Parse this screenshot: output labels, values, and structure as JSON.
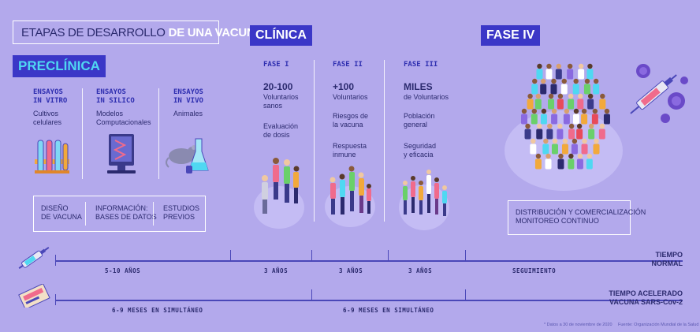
{
  "title": {
    "main": "ETAPAS DE DESARROLLO",
    "bold": "DE UNA VACUNA"
  },
  "phases": {
    "preclinica": "PRECLÍNICA",
    "clinica": "CLÍNICA",
    "fase4": "FASE IV"
  },
  "preclinica": {
    "columns": [
      {
        "head": "ENSAYOS\nIN VITRO",
        "desc": "Cultivos\ncelulares",
        "icon": "test-tubes-icon"
      },
      {
        "head": "ENSAYOS\nIN SILICO",
        "desc": "Modelos\nComputacionales",
        "icon": "computer-icon"
      },
      {
        "head": "ENSAYOS\nIN VIVO",
        "desc": "Animales",
        "icon": "mouse-flask-icon"
      }
    ],
    "footer_items": [
      "DISEÑO\nDE VACUNA",
      "INFORMACIÓN:\nBASES DE DATOS",
      "ESTUDIOS\nPREVIOS"
    ]
  },
  "clinica": {
    "columns": [
      {
        "head": "FASE I",
        "big": "20-100",
        "lines": [
          "Voluntarios\nsanos",
          "Evaluación\nde dosis"
        ]
      },
      {
        "head": "FASE II",
        "big": "+100",
        "lines": [
          "Voluntarios",
          "Riesgos de\nla vacuna",
          "Respuesta\ninmune"
        ]
      },
      {
        "head": "FASE III",
        "big": "MILES",
        "lines": [
          "de Voluntarios",
          "Población\ngeneral",
          "Seguridad\ny eficacia"
        ]
      }
    ]
  },
  "fase4": {
    "box": "DISTRIBUCIÓN Y COMERCIALIZACIÓN\nMONITOREO CONTINUO"
  },
  "timeline_normal": {
    "segments": [
      "5-10 AÑOS",
      "3 AÑOS",
      "3 AÑOS",
      "3 AÑOS",
      "SEGUIMIENTO"
    ],
    "label": "TIEMPO\nNORMAL"
  },
  "timeline_fast": {
    "segments": [
      "6-9 MESES EN SIMULTÁNEO",
      "6-9 MESES EN SIMULTÁNEO"
    ],
    "label": "TIEMPO ACELERADO\nVACUNA SARS-Cov-2"
  },
  "footnotes": [
    "* Datos a 30 de noviembre de 2020",
    "Fuente: Organización Mundial de la Salud"
  ],
  "colors": {
    "background": "#b3a9ec",
    "accent": "#3b37c7",
    "cyan": "#4fd8f2",
    "text": "#2b2a6e"
  }
}
